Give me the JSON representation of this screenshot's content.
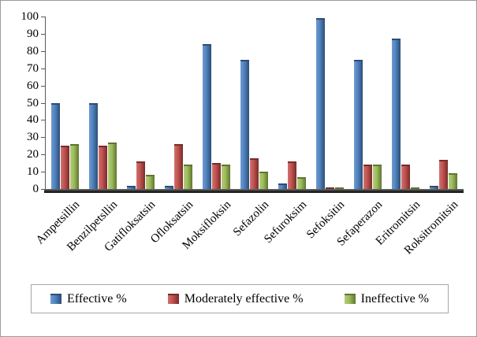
{
  "chart_data": {
    "type": "bar",
    "title": "",
    "xlabel": "",
    "ylabel": "",
    "ylim": [
      0,
      100
    ],
    "ytick_step": 10,
    "yticks": [
      "0",
      "10",
      "20",
      "30",
      "40",
      "50",
      "60",
      "70",
      "80",
      "90",
      "100"
    ],
    "grid": false,
    "legend_position": "bottom",
    "categories": [
      "Ampetsillin",
      "Benzilpetsllin",
      "Gatifloksatsin",
      "Ofloksatsin",
      "Moksifloksin",
      "Sefazolin",
      "Sefuroksim",
      "Sefoksitin",
      "Sefaperazon",
      "Eritromitsin",
      "Roksitromitsin"
    ],
    "series": [
      {
        "name": "Effective %",
        "color": "#4F81BD",
        "light": "#6E9BD1",
        "dark": "#2C4D75",
        "values": [
          50,
          50,
          2,
          2,
          84,
          75,
          3,
          99,
          75,
          87,
          2
        ]
      },
      {
        "name": "Moderately effective %",
        "color": "#C0504D",
        "light": "#CF7370",
        "dark": "#772C2A",
        "values": [
          25,
          25,
          16,
          26,
          15,
          18,
          16,
          1,
          14,
          14,
          17
        ]
      },
      {
        "name": "Ineffective %",
        "color": "#9BBB59",
        "light": "#B2CC7F",
        "dark": "#5F7530",
        "values": [
          26,
          27,
          8,
          14,
          14,
          10,
          7,
          1,
          14,
          1,
          9
        ]
      }
    ]
  }
}
